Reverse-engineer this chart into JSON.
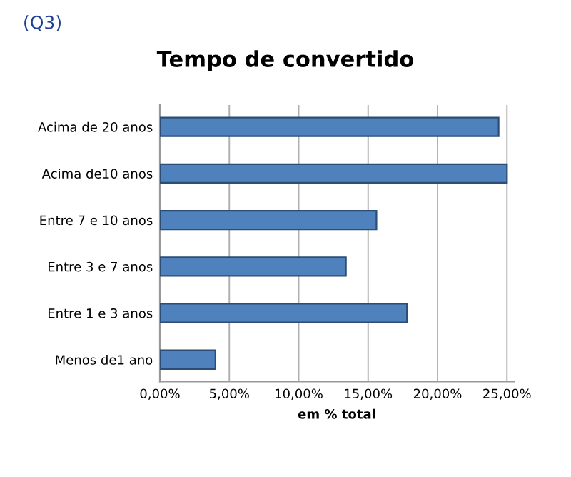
{
  "chart_data": {
    "type": "bar",
    "orientation": "horizontal",
    "title": "Tempo de convertido",
    "xlabel": "em % total",
    "annotations": [
      "(Q3)"
    ],
    "categories": [
      "Acima de 20 anos",
      "Acima de10 anos",
      "Entre 7 e 10 anos",
      "Entre 3 e 7 anos",
      "Entre 1 e 3 anos",
      "Menos de1 ano"
    ],
    "values": [
      24.4,
      25.0,
      15.6,
      13.4,
      17.8,
      4.0
    ],
    "color": "#4f81bd",
    "xlim": [
      0,
      25.5
    ],
    "xticks": [
      {
        "value": 0,
        "label": "0,00%"
      },
      {
        "value": 5,
        "label": "5,00%"
      },
      {
        "value": 10,
        "label": "10,00%"
      },
      {
        "value": 15,
        "label": "15,00%"
      },
      {
        "value": 20,
        "label": "20,00%"
      },
      {
        "value": 25,
        "label": "25,00%"
      }
    ],
    "grid": "x",
    "legend": false
  }
}
